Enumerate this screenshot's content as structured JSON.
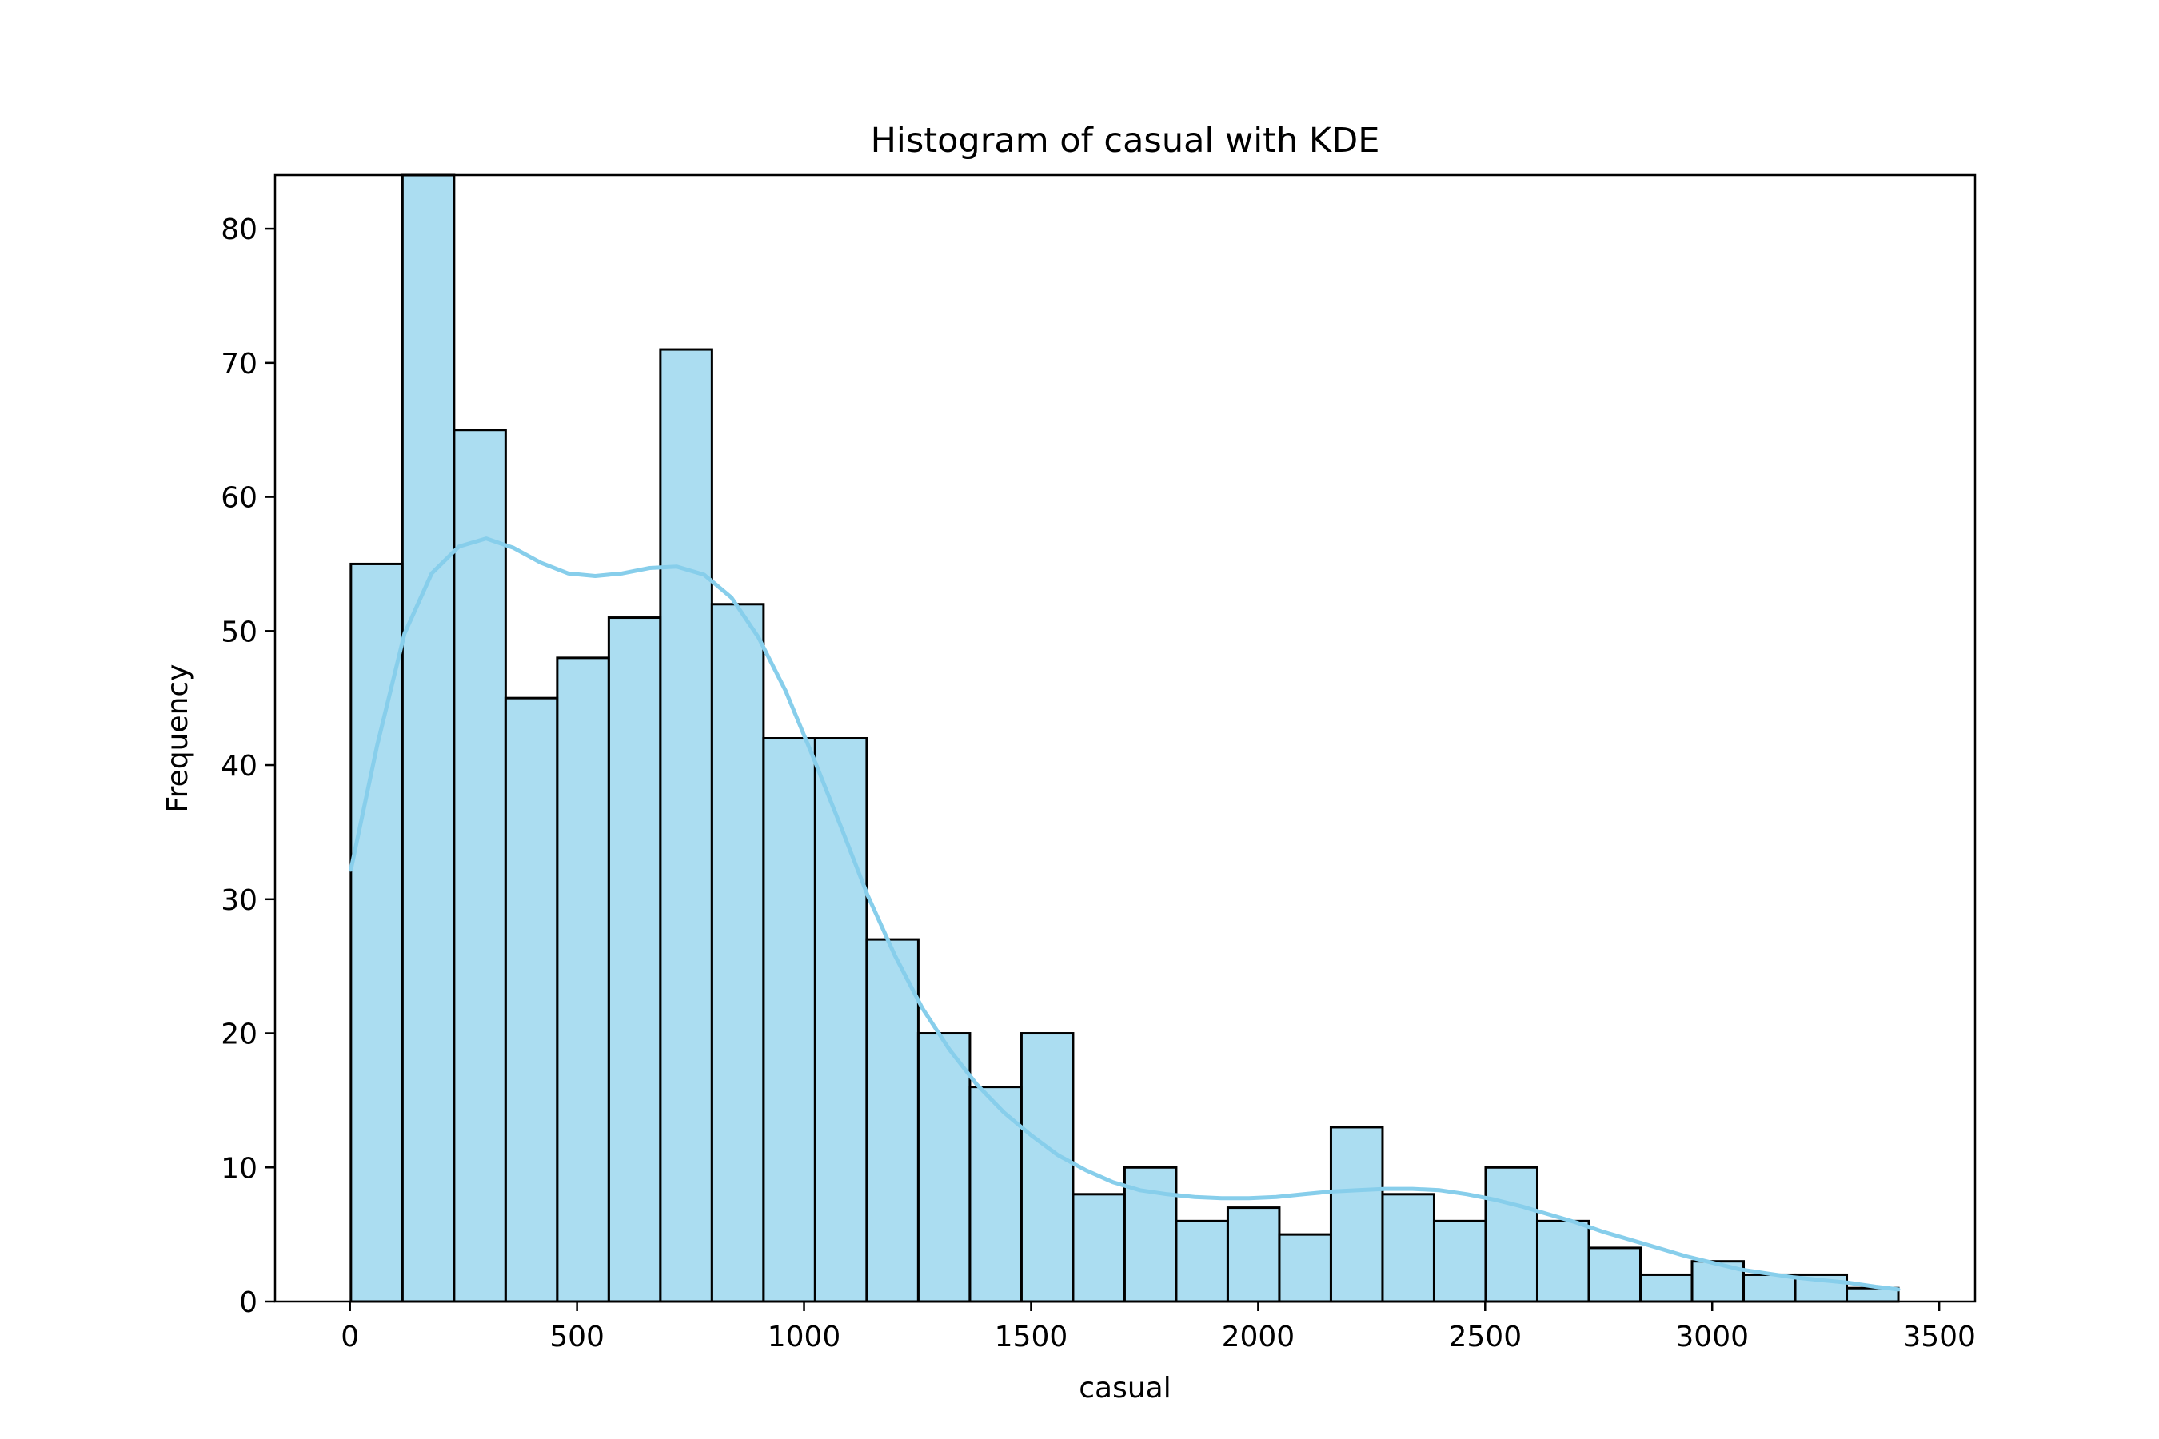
{
  "chart_data": {
    "type": "bar",
    "title": "Histogram of casual with KDE",
    "xlabel": "casual",
    "ylabel": "Frequency",
    "xlim": [
      -165,
      3579
    ],
    "ylim": [
      0,
      84
    ],
    "xticks": [
      0,
      500,
      1000,
      1500,
      2000,
      2500,
      3000,
      3500
    ],
    "yticks": [
      0,
      10,
      20,
      30,
      40,
      50,
      60,
      70,
      80
    ],
    "grid": false,
    "bar_color": "#87CEEB",
    "bar_opacity": 0.7,
    "edge_color": "#000000",
    "kde_color": "#87CEEB",
    "bins": {
      "start": 2,
      "width": 113.6,
      "counts": [
        55,
        84,
        65,
        45,
        48,
        51,
        71,
        52,
        42,
        42,
        27,
        20,
        16,
        20,
        8,
        10,
        6,
        7,
        5,
        13,
        8,
        6,
        10,
        6,
        4,
        2,
        3,
        2,
        2,
        1
      ]
    },
    "kde": {
      "x": [
        2,
        60,
        120,
        180,
        240,
        300,
        360,
        420,
        480,
        540,
        600,
        660,
        720,
        780,
        840,
        900,
        960,
        1020,
        1080,
        1140,
        1200,
        1260,
        1320,
        1380,
        1440,
        1500,
        1560,
        1620,
        1680,
        1740,
        1800,
        1860,
        1920,
        1980,
        2040,
        2100,
        2160,
        2220,
        2280,
        2340,
        2400,
        2460,
        2520,
        2580,
        2640,
        2700,
        2760,
        2820,
        2880,
        2940,
        3000,
        3060,
        3120,
        3180,
        3240,
        3300,
        3360,
        3410
      ],
      "y": [
        32.2,
        41.5,
        49.8,
        54.3,
        56.3,
        56.9,
        56.2,
        55.1,
        54.3,
        54.1,
        54.3,
        54.7,
        54.8,
        54.2,
        52.5,
        49.5,
        45.5,
        40.6,
        35.5,
        30.3,
        25.8,
        21.9,
        18.8,
        16.2,
        14.1,
        12.4,
        10.9,
        9.8,
        8.9,
        8.3,
        8.0,
        7.8,
        7.7,
        7.7,
        7.8,
        8.0,
        8.2,
        8.3,
        8.4,
        8.4,
        8.3,
        8.0,
        7.6,
        7.1,
        6.5,
        5.9,
        5.2,
        4.6,
        4.0,
        3.4,
        2.9,
        2.4,
        2.1,
        1.8,
        1.6,
        1.4,
        1.1,
        0.9
      ]
    }
  }
}
